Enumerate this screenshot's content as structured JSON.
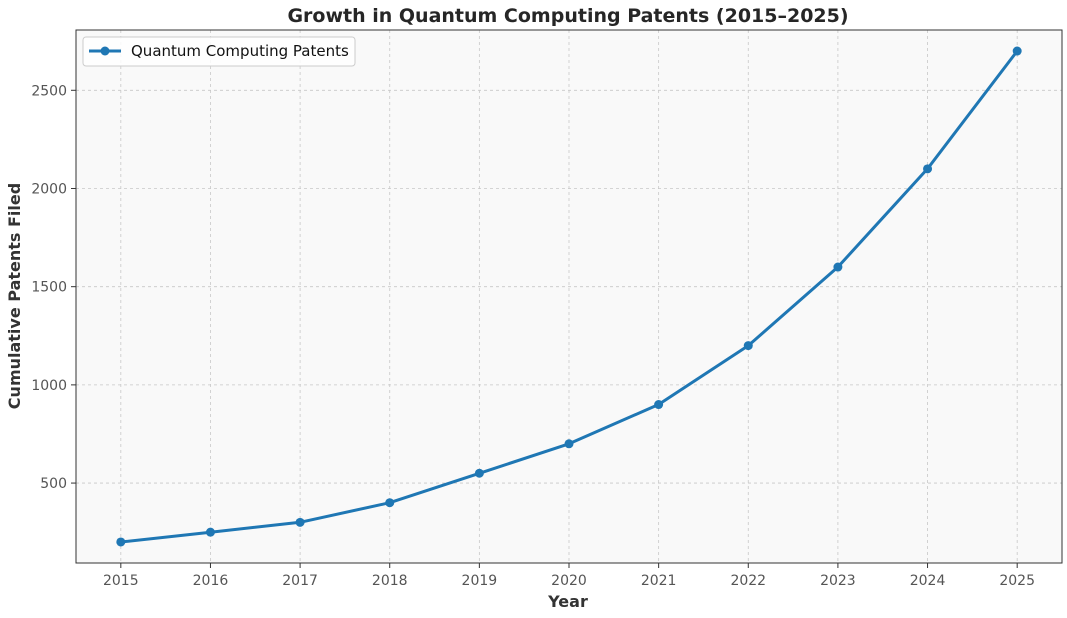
{
  "chart_data": {
    "type": "line",
    "title": "Growth in Quantum Computing Patents (2015–2025)",
    "xlabel": "Year",
    "ylabel": "Cumulative Patents Filed",
    "x": [
      2015,
      2016,
      2017,
      2018,
      2019,
      2020,
      2021,
      2022,
      2023,
      2024,
      2025
    ],
    "x_tick_labels": [
      "2015",
      "2016",
      "2017",
      "2018",
      "2019",
      "2020",
      "2021",
      "2022",
      "2023",
      "2024",
      "2025"
    ],
    "y_ticks": [
      500,
      1000,
      1500,
      2000,
      2500
    ],
    "y_tick_labels": [
      "500",
      "1000",
      "1500",
      "2000",
      "2500"
    ],
    "xlim": [
      2014.5,
      2025.5
    ],
    "ylim": [
      93,
      2807
    ],
    "grid": true,
    "legend_position": "top-left",
    "series": [
      {
        "name": "Quantum Computing Patents",
        "color": "#1f77b4",
        "marker": "circle",
        "values": [
          200,
          250,
          300,
          400,
          550,
          700,
          900,
          1200,
          1600,
          2100,
          2700
        ]
      }
    ]
  }
}
